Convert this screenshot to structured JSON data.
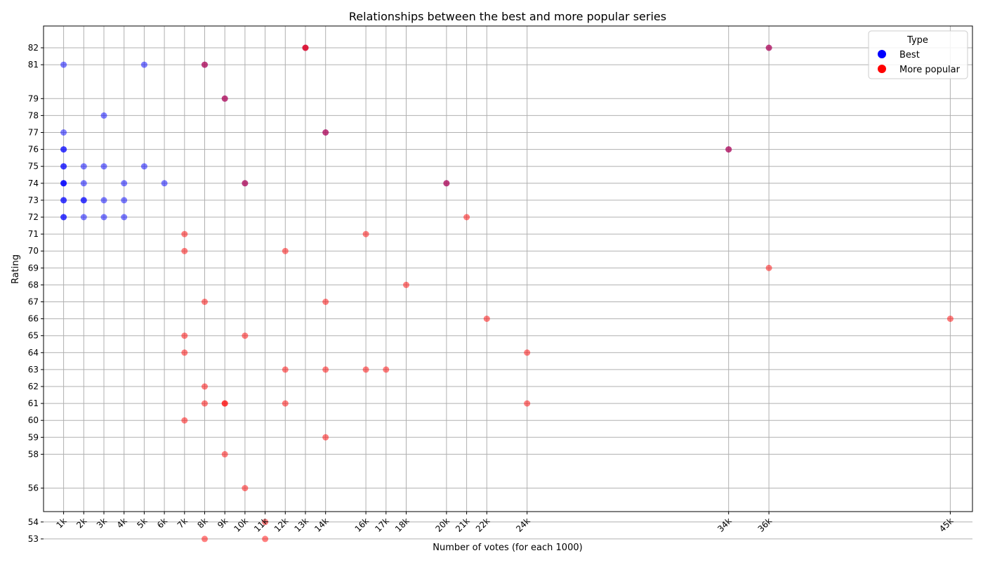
{
  "chart_data": {
    "type": "scatter",
    "title": "Relationships between the best and more popular series",
    "xlabel": "Number of votes (for each 1000)",
    "ylabel": "Rating",
    "x_ticks": [
      1,
      2,
      3,
      4,
      5,
      6,
      7,
      8,
      9,
      10,
      11,
      12,
      13,
      14,
      16,
      17,
      18,
      20,
      21,
      22,
      24,
      34,
      36,
      45
    ],
    "x_tick_labels": [
      "1k",
      "2k",
      "3k",
      "4k",
      "5k",
      "6k",
      "7k",
      "8k",
      "9k",
      "10k",
      "11k",
      "12k",
      "13k",
      "14k",
      "16k",
      "17k",
      "18k",
      "20k",
      "21k",
      "22k",
      "24k",
      "34k",
      "36k",
      "45k"
    ],
    "y_ticks": [
      53,
      54,
      56,
      58,
      59,
      60,
      61,
      62,
      63,
      64,
      65,
      66,
      67,
      68,
      69,
      70,
      71,
      72,
      73,
      74,
      75,
      76,
      77,
      78,
      79,
      81,
      82
    ],
    "y_tick_labels": [
      "53",
      "54",
      "56",
      "58",
      "59",
      "60",
      "61",
      "62",
      "63",
      "64",
      "65",
      "66",
      "67",
      "68",
      "69",
      "70",
      "71",
      "72",
      "73",
      "74",
      "75",
      "76",
      "77",
      "78",
      "79",
      "81",
      "82"
    ],
    "grid": true,
    "legend": {
      "title": "Type",
      "position": "top-right",
      "entries": [
        {
          "label": "Best",
          "color": "#0000ff"
        },
        {
          "label": "More popular",
          "color": "#ff0000"
        }
      ]
    },
    "series": [
      {
        "name": "Best",
        "color": "#0000ff",
        "points": [
          [
            1,
            81
          ],
          [
            1,
            77
          ],
          [
            1,
            76
          ],
          [
            1,
            76
          ],
          [
            1,
            75
          ],
          [
            1,
            75
          ],
          [
            1,
            74
          ],
          [
            1,
            74
          ],
          [
            1,
            74
          ],
          [
            1,
            73
          ],
          [
            1,
            73
          ],
          [
            1,
            72
          ],
          [
            1,
            72
          ],
          [
            2,
            75
          ],
          [
            2,
            74
          ],
          [
            2,
            73
          ],
          [
            2,
            73
          ],
          [
            2,
            72
          ],
          [
            3,
            78
          ],
          [
            3,
            75
          ],
          [
            3,
            73
          ],
          [
            3,
            72
          ],
          [
            4,
            74
          ],
          [
            4,
            73
          ],
          [
            4,
            72
          ],
          [
            5,
            81
          ],
          [
            5,
            75
          ],
          [
            6,
            74
          ],
          [
            8,
            81
          ],
          [
            9,
            79
          ],
          [
            10,
            74
          ],
          [
            13,
            82
          ],
          [
            14,
            77
          ],
          [
            20,
            74
          ],
          [
            34,
            76
          ],
          [
            36,
            82
          ]
        ]
      },
      {
        "name": "More popular",
        "color": "#ff0000",
        "points": [
          [
            7,
            71
          ],
          [
            7,
            70
          ],
          [
            7,
            65
          ],
          [
            7,
            64
          ],
          [
            7,
            60
          ],
          [
            8,
            81
          ],
          [
            8,
            67
          ],
          [
            8,
            62
          ],
          [
            8,
            61
          ],
          [
            8,
            53
          ],
          [
            9,
            79
          ],
          [
            9,
            61
          ],
          [
            9,
            61
          ],
          [
            9,
            58
          ],
          [
            10,
            74
          ],
          [
            10,
            65
          ],
          [
            10,
            56
          ],
          [
            11,
            54
          ],
          [
            11,
            53
          ],
          [
            12,
            70
          ],
          [
            12,
            63
          ],
          [
            12,
            61
          ],
          [
            13,
            82
          ],
          [
            13,
            82
          ],
          [
            14,
            77
          ],
          [
            14,
            67
          ],
          [
            14,
            63
          ],
          [
            14,
            59
          ],
          [
            16,
            71
          ],
          [
            16,
            63
          ],
          [
            17,
            63
          ],
          [
            18,
            68
          ],
          [
            20,
            74
          ],
          [
            21,
            72
          ],
          [
            22,
            66
          ],
          [
            24,
            64
          ],
          [
            24,
            61
          ],
          [
            34,
            76
          ],
          [
            36,
            82
          ],
          [
            36,
            69
          ],
          [
            45,
            66
          ]
        ]
      }
    ]
  }
}
